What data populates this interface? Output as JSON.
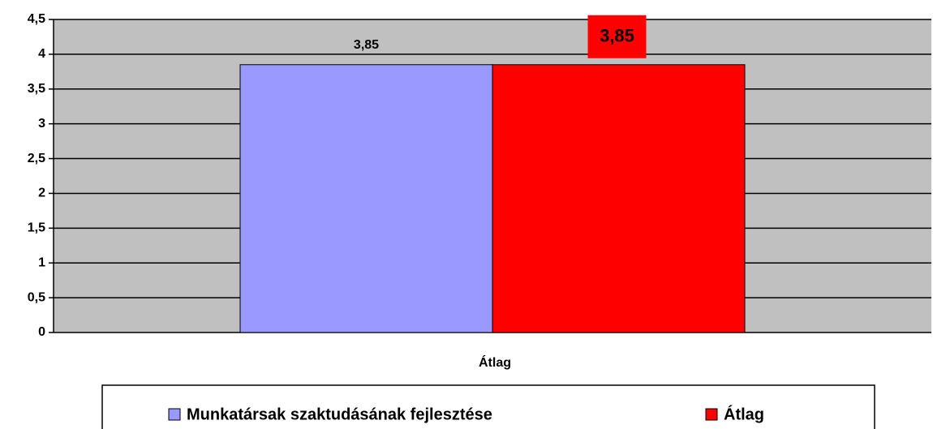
{
  "chart_data": {
    "type": "bar",
    "categories": [
      "Átlag"
    ],
    "series": [
      {
        "name": "Munkatársak szaktudásának fejlesztése",
        "color": "#9999ff",
        "values": [
          3.85
        ],
        "value_labels": [
          "3,85"
        ]
      },
      {
        "name": "Átlag",
        "color": "#ff0000",
        "values": [
          3.85
        ],
        "value_labels": [
          "3,85"
        ]
      }
    ],
    "ylim": [
      0,
      4.5
    ],
    "yticks": [
      0,
      {
        "value": 0.5,
        "label": "0,5"
      },
      1,
      {
        "value": 1.5,
        "label": "1,5"
      },
      2,
      {
        "value": 2.5,
        "label": "2,5"
      },
      3,
      {
        "value": 3.5,
        "label": "3,5"
      },
      4,
      {
        "value": 4.5,
        "label": "4,5"
      }
    ],
    "grid": true,
    "legend": "bottom"
  }
}
